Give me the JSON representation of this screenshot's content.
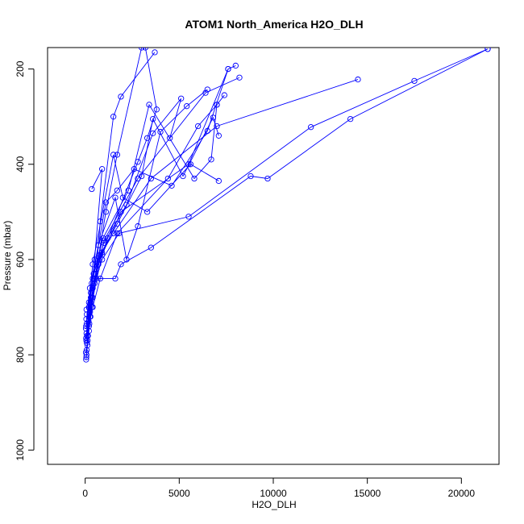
{
  "chart_data": {
    "type": "scatter",
    "title": "ATOM1 North_America H2O_DLH",
    "xlabel": "H2O_DLH",
    "ylabel": "Pressure (mbar)",
    "xlim": [
      -2000,
      22000
    ],
    "ylim": [
      1030,
      155
    ],
    "y_reversed": true,
    "x_ticks": [
      0,
      5000,
      10000,
      15000,
      20000
    ],
    "y_ticks": [
      200,
      400,
      600,
      800,
      1000
    ],
    "grid": false,
    "legend": "none",
    "color": "#0000ff",
    "series": [
      {
        "points": [
          [
            50,
            810
          ],
          [
            120,
            780
          ],
          [
            200,
            750
          ],
          [
            350,
            700
          ],
          [
            600,
            620
          ],
          [
            1100,
            500
          ],
          [
            1700,
            380
          ],
          [
            3000,
            155
          ]
        ]
      },
      {
        "points": [
          [
            60,
            805
          ],
          [
            150,
            760
          ],
          [
            280,
            720
          ],
          [
            500,
            650
          ],
          [
            1000,
            560
          ],
          [
            2800,
            430
          ],
          [
            6400,
            250
          ],
          [
            8200,
            218
          ]
        ]
      },
      {
        "points": [
          [
            70,
            800
          ],
          [
            200,
            740
          ],
          [
            400,
            680
          ],
          [
            900,
            590
          ],
          [
            1900,
            500
          ],
          [
            5500,
            400
          ],
          [
            7600,
            200
          ]
        ]
      },
      {
        "points": [
          [
            40,
            795
          ],
          [
            130,
            770
          ],
          [
            260,
            710
          ],
          [
            500,
            640
          ],
          [
            900,
            585
          ],
          [
            1500,
            545
          ],
          [
            3500,
            430
          ],
          [
            7000,
            320
          ],
          [
            14500,
            222
          ]
        ]
      },
      {
        "points": [
          [
            80,
            790
          ],
          [
            220,
            735
          ],
          [
            400,
            660
          ],
          [
            900,
            600
          ],
          [
            1800,
            545
          ],
          [
            5500,
            510
          ],
          [
            12000,
            322
          ],
          [
            17500,
            225
          ],
          [
            21400,
            158
          ]
        ]
      },
      {
        "points": [
          [
            90,
            775
          ],
          [
            250,
            720
          ],
          [
            600,
            640
          ],
          [
            1600,
            640
          ],
          [
            1900,
            610
          ],
          [
            3500,
            575
          ],
          [
            8800,
            425
          ],
          [
            9700,
            430
          ],
          [
            14100,
            305
          ],
          [
            21400,
            158
          ]
        ]
      },
      {
        "points": [
          [
            60,
            770
          ],
          [
            300,
            690
          ],
          [
            700,
            610
          ],
          [
            1200,
            555
          ],
          [
            2800,
            395
          ],
          [
            3300,
            345
          ],
          [
            3800,
            285
          ],
          [
            3200,
            155
          ]
        ]
      },
      {
        "points": [
          [
            50,
            765
          ],
          [
            180,
            730
          ],
          [
            350,
            680
          ],
          [
            600,
            620
          ],
          [
            800,
            520
          ],
          [
            1500,
            300
          ],
          [
            1900,
            258
          ],
          [
            3700,
            165
          ]
        ]
      },
      {
        "points": [
          [
            100,
            760
          ],
          [
            400,
            700
          ],
          [
            800,
            640
          ],
          [
            1700,
            545
          ],
          [
            4400,
            430
          ],
          [
            6000,
            320
          ],
          [
            7000,
            275
          ],
          [
            7400,
            255
          ]
        ]
      },
      {
        "points": [
          [
            70,
            755
          ],
          [
            300,
            680
          ],
          [
            500,
            600
          ],
          [
            900,
            410
          ],
          [
            350,
            452
          ]
        ]
      },
      {
        "points": [
          [
            40,
            745
          ],
          [
            200,
            700
          ],
          [
            450,
            630
          ],
          [
            1000,
            565
          ],
          [
            2200,
            485
          ],
          [
            3600,
            335
          ],
          [
            5100,
            262
          ],
          [
            4500,
            345
          ]
        ]
      },
      {
        "points": [
          [
            50,
            740
          ],
          [
            200,
            690
          ],
          [
            400,
            610
          ],
          [
            1500,
            380
          ],
          [
            2000,
            470
          ],
          [
            3300,
            500
          ],
          [
            5600,
            400
          ],
          [
            7100,
            435
          ]
        ]
      },
      {
        "points": [
          [
            80,
            735
          ],
          [
            250,
            660
          ],
          [
            700,
            570
          ],
          [
            1600,
            470
          ],
          [
            2200,
            600
          ],
          [
            2800,
            530
          ],
          [
            4000,
            332
          ],
          [
            5400,
            278
          ],
          [
            6500,
            243
          ]
        ]
      },
      {
        "points": [
          [
            60,
            725
          ],
          [
            300,
            670
          ],
          [
            800,
            590
          ],
          [
            1700,
            525
          ],
          [
            3000,
            425
          ],
          [
            3600,
            305
          ],
          [
            5200,
            425
          ],
          [
            6800,
            302
          ],
          [
            7100,
            340
          ]
        ]
      },
      {
        "points": [
          [
            90,
            715
          ],
          [
            350,
            650
          ],
          [
            950,
            555
          ],
          [
            2300,
            455
          ],
          [
            3400,
            275
          ],
          [
            5800,
            430
          ],
          [
            6700,
            390
          ],
          [
            7000,
            275
          ]
        ]
      },
      {
        "points": [
          [
            70,
            705
          ],
          [
            400,
            640
          ],
          [
            1100,
            480
          ],
          [
            1700,
            455
          ],
          [
            2600,
            410
          ],
          [
            4600,
            445
          ],
          [
            6500,
            330
          ],
          [
            7600,
            200
          ],
          [
            8000,
            193
          ]
        ]
      }
    ]
  }
}
